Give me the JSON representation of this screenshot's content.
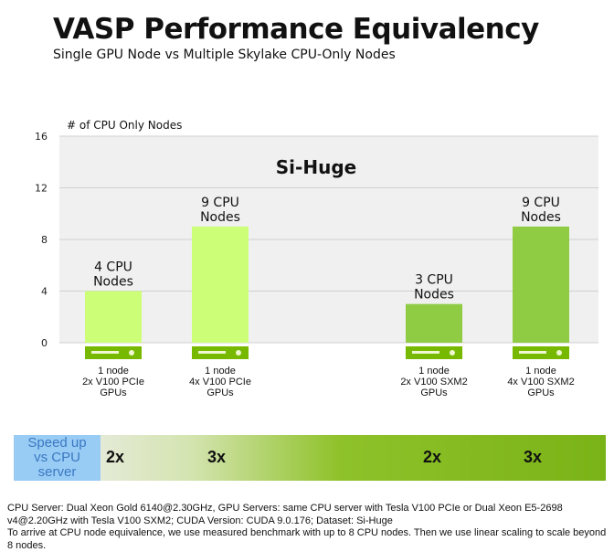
{
  "title": "VASP Performance Equivalency",
  "subtitle": "Single GPU Node vs Multiple Skylake CPU-Only Nodes",
  "chart_data": {
    "type": "bar",
    "title": "Si-Huge",
    "ylabel": "# of CPU Only Nodes",
    "ylim": [
      0,
      16
    ],
    "yticks": [
      0,
      4,
      8,
      12,
      16
    ],
    "grid": true,
    "categories": [
      [
        "1 node",
        "2x V100 PCIe",
        "GPUs"
      ],
      [
        "1 node",
        "4x V100 PCIe",
        "GPUs"
      ],
      [
        "1 node",
        "2x V100 SXM2",
        "GPUs"
      ],
      [
        "1 node",
        "4x V100 SXM2",
        "GPUs"
      ]
    ],
    "values": [
      4,
      9,
      3,
      9
    ],
    "data_labels": [
      [
        "4 CPU",
        "Nodes"
      ],
      [
        "9 CPU",
        "Nodes"
      ],
      [
        "3 CPU",
        "Nodes"
      ],
      [
        "9 CPU",
        "Nodes"
      ]
    ],
    "bar_colors": [
      "#ccff77",
      "#ccff77",
      "#8fcc44",
      "#8fcc44"
    ],
    "icon": "server-icon",
    "icon_color": "#76b900"
  },
  "speedup": {
    "label": [
      "Speed up",
      "vs CPU",
      "server"
    ],
    "values": [
      "2x",
      "3x",
      "2x",
      "3x"
    ],
    "label_color": "#99ccf5",
    "accent": "#76b900"
  },
  "footnote": {
    "line1": "CPU Server: Dual Xeon Gold 6140@2.30GHz,  GPU Servers: same CPU server with Tesla V100 PCIe or Dual Xeon E5-2698 v4@2.20GHz  with Tesla V100 SXM2; CUDA Version: CUDA 9.0.176;  Dataset: Si-Huge",
    "line2": "To arrive at CPU node equivalence, we use measured benchmark with up to 8 CPU nodes. Then we use linear scaling to scale beyond 8 nodes."
  }
}
